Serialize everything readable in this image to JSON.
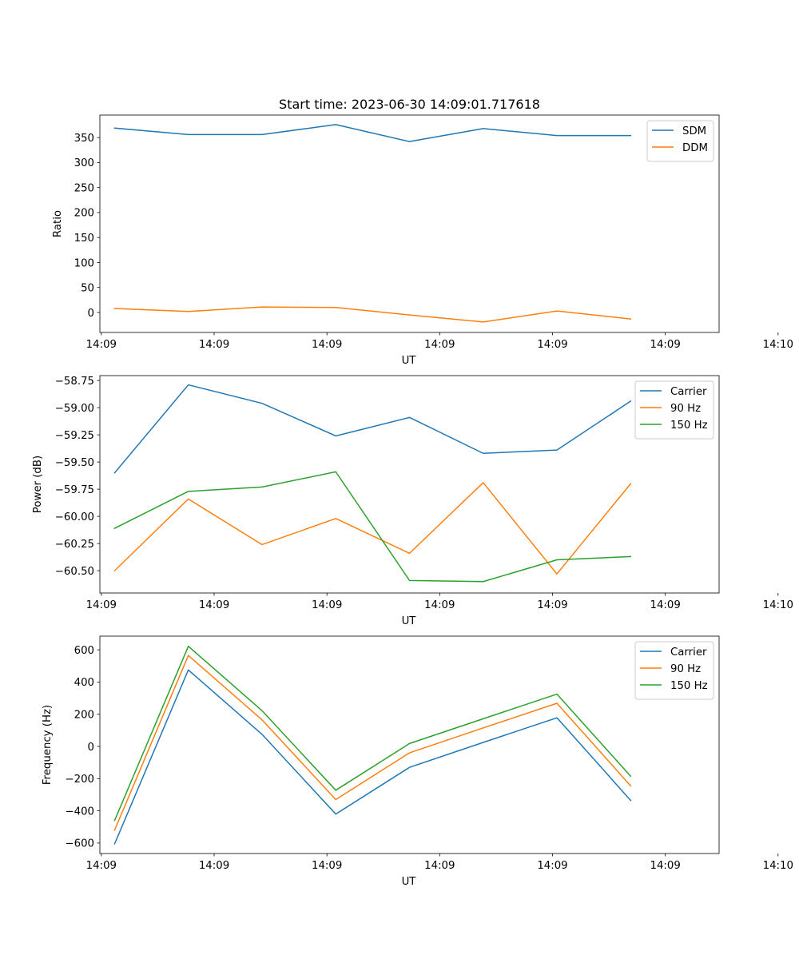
{
  "chart_data": [
    {
      "type": "line",
      "title": "Start time: 2023-06-30 14:09:01.717618",
      "xlabel": "UT",
      "ylabel": "Ratio",
      "x": [
        1,
        2,
        3,
        4,
        5,
        6,
        7,
        8
      ],
      "xlim": [
        0.8,
        9.2
      ],
      "xticks": [
        {
          "value": 0.82,
          "label": "14:09"
        },
        {
          "value": 2.35,
          "label": "14:09"
        },
        {
          "value": 3.88,
          "label": "14:09"
        },
        {
          "value": 5.41,
          "label": "14:09"
        },
        {
          "value": 6.94,
          "label": "14:09"
        },
        {
          "value": 8.47,
          "label": "14:09"
        },
        {
          "value": 10.0,
          "label": "14:10"
        }
      ],
      "ylim": [
        -40,
        395
      ],
      "yticks": [
        {
          "value": 350,
          "label": "350"
        },
        {
          "value": 300,
          "label": "300"
        },
        {
          "value": 250,
          "label": "250"
        },
        {
          "value": 200,
          "label": "200"
        },
        {
          "value": 150,
          "label": "150"
        },
        {
          "value": 100,
          "label": "100"
        },
        {
          "value": 50,
          "label": "50"
        },
        {
          "value": 0,
          "label": "0"
        }
      ],
      "legend_position": "top-right",
      "grid": false,
      "series": [
        {
          "name": "SDM",
          "color": "#1f77b4",
          "values": [
            369,
            356,
            356,
            376,
            342,
            368,
            354,
            354
          ]
        },
        {
          "name": "DDM",
          "color": "#ff7f0e",
          "values": [
            8,
            2,
            11,
            10,
            -5,
            -19,
            3,
            -13
          ]
        }
      ]
    },
    {
      "type": "line",
      "title": "",
      "xlabel": "UT",
      "ylabel": "Power (dB)",
      "x": [
        1,
        2,
        3,
        4,
        5,
        6,
        7,
        8
      ],
      "xlim": [
        0.8,
        9.2
      ],
      "xticks": [
        {
          "value": 0.82,
          "label": "14:09"
        },
        {
          "value": 2.35,
          "label": "14:09"
        },
        {
          "value": 3.88,
          "label": "14:09"
        },
        {
          "value": 5.41,
          "label": "14:09"
        },
        {
          "value": 6.94,
          "label": "14:09"
        },
        {
          "value": 8.47,
          "label": "14:09"
        },
        {
          "value": 10.0,
          "label": "14:10"
        }
      ],
      "ylim": [
        -60.705,
        -58.705
      ],
      "yticks": [
        {
          "value": -58.75,
          "label": "−58.75"
        },
        {
          "value": -59.0,
          "label": "−59.00"
        },
        {
          "value": -59.25,
          "label": "−59.25"
        },
        {
          "value": -59.5,
          "label": "−59.50"
        },
        {
          "value": -59.75,
          "label": "−59.75"
        },
        {
          "value": -60.0,
          "label": "−60.00"
        },
        {
          "value": -60.25,
          "label": "−60.25"
        },
        {
          "value": -60.5,
          "label": "−60.50"
        }
      ],
      "legend_position": "top-right",
      "grid": false,
      "series": [
        {
          "name": "Carrier",
          "color": "#1f77b4",
          "values": [
            -59.6,
            -58.79,
            -58.96,
            -59.26,
            -59.09,
            -59.42,
            -59.39,
            -58.94
          ]
        },
        {
          "name": "90 Hz",
          "color": "#ff7f0e",
          "values": [
            -60.5,
            -59.84,
            -60.26,
            -60.02,
            -60.34,
            -59.69,
            -60.53,
            -59.7
          ]
        },
        {
          "name": "150 Hz",
          "color": "#2ca02c",
          "values": [
            -60.11,
            -59.77,
            -59.73,
            -59.59,
            -60.59,
            -60.6,
            -60.4,
            -60.37
          ]
        }
      ]
    },
    {
      "type": "line",
      "title": "",
      "xlabel": "UT",
      "ylabel": "Frequency (Hz)",
      "x": [
        1,
        2,
        3,
        4,
        5,
        6,
        7,
        8
      ],
      "xlim": [
        0.8,
        9.2
      ],
      "xticks": [
        {
          "value": 0.82,
          "label": "14:09"
        },
        {
          "value": 2.35,
          "label": "14:09"
        },
        {
          "value": 3.88,
          "label": "14:09"
        },
        {
          "value": 5.41,
          "label": "14:09"
        },
        {
          "value": 6.94,
          "label": "14:09"
        },
        {
          "value": 8.47,
          "label": "14:09"
        },
        {
          "value": 10.0,
          "label": "14:10"
        }
      ],
      "ylim": [
        -665,
        685
      ],
      "yticks": [
        {
          "value": 600,
          "label": "600"
        },
        {
          "value": 400,
          "label": "400"
        },
        {
          "value": 200,
          "label": "200"
        },
        {
          "value": 0,
          "label": "0"
        },
        {
          "value": -200,
          "label": "−200"
        },
        {
          "value": -400,
          "label": "−400"
        },
        {
          "value": -600,
          "label": "−600"
        }
      ],
      "legend_position": "top-right",
      "grid": false,
      "series": [
        {
          "name": "Carrier",
          "color": "#1f77b4",
          "values": [
            -605,
            475,
            75,
            -420,
            -130,
            25,
            178,
            -335
          ]
        },
        {
          "name": "90 Hz",
          "color": "#ff7f0e",
          "values": [
            -520,
            565,
            165,
            -330,
            -40,
            115,
            268,
            -245
          ]
        },
        {
          "name": "150 Hz",
          "color": "#2ca02c",
          "values": [
            -460,
            622,
            222,
            -272,
            18,
            172,
            325,
            -185
          ]
        }
      ]
    }
  ]
}
